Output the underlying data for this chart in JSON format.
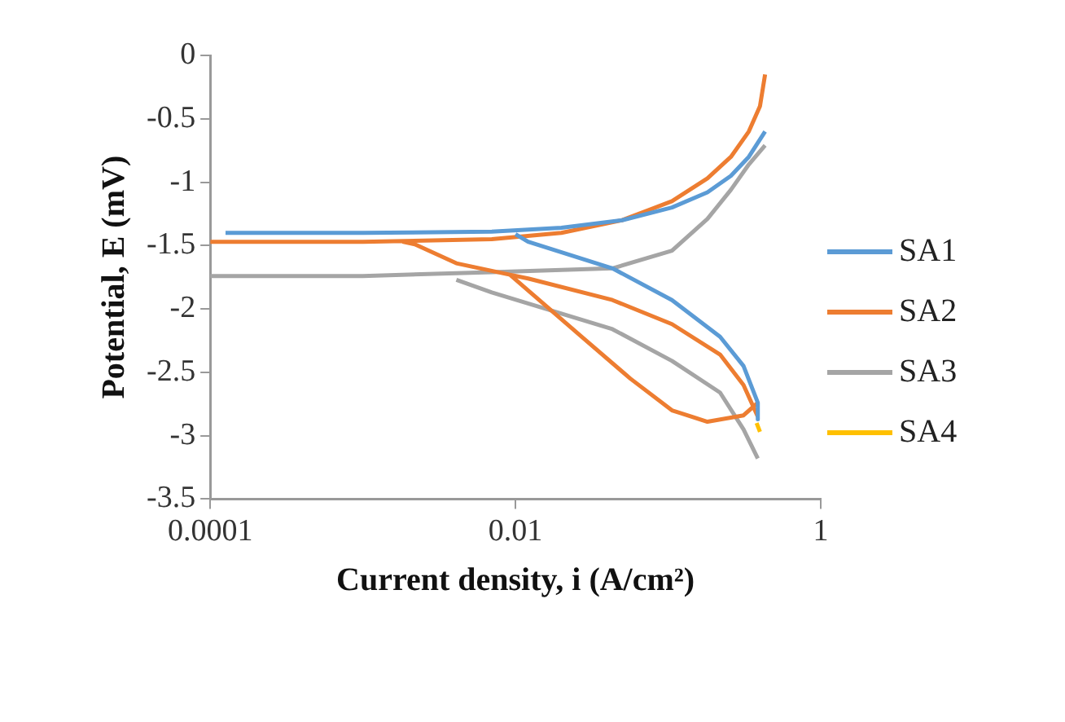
{
  "chart_data": {
    "type": "line",
    "xlabel": "Current density, i (A/cm²)",
    "ylabel": "Potential, E (mV)",
    "log": "x",
    "xlim": [
      0.0001,
      1
    ],
    "xticks": [
      0.0001,
      0.01,
      1
    ],
    "ylim": [
      -3.5,
      0
    ],
    "yticks": [
      -3.5,
      -3,
      -2.5,
      -2,
      -1.5,
      -1,
      -0.5,
      0
    ],
    "grid": false,
    "legend": "right",
    "marker": "none",
    "line_style": "solid",
    "series": [
      {
        "name": "SA1",
        "color": "#5b9bd5",
        "x": [
          0.432,
          0.338,
          0.258,
          0.181,
          0.106,
          0.05,
          0.02,
          0.007,
          0.001,
          0.000126,
          null,
          0.01,
          0.0121,
          0.0432,
          0.106,
          0.219,
          0.312,
          0.387,
          0.387
        ],
        "values": [
          -0.6,
          -0.8,
          -0.95,
          -1.08,
          -1.2,
          -1.3,
          -1.36,
          -1.39,
          -1.4,
          -1.4,
          null,
          -1.41,
          -1.47,
          -1.68,
          -1.93,
          -2.22,
          -2.45,
          -2.74,
          -2.87
        ]
      },
      {
        "name": "SA2",
        "color": "#ed7d31",
        "x": [
          0.432,
          0.4,
          0.338,
          0.258,
          0.181,
          0.106,
          0.05,
          0.02,
          0.007,
          0.001,
          0.0001,
          null,
          0.00182,
          0.00219,
          0.0041,
          0.0092,
          0.0121,
          0.0432,
          0.106,
          0.219,
          0.312,
          0.387,
          null,
          0.0092,
          0.0272,
          0.0566,
          0.106,
          0.181,
          0.312,
          0.387
        ],
        "values": [
          -0.15,
          -0.4,
          -0.6,
          -0.8,
          -0.97,
          -1.15,
          -1.3,
          -1.4,
          -1.45,
          -1.47,
          -1.47,
          null,
          -1.47,
          -1.49,
          -1.64,
          -1.73,
          -1.76,
          -1.93,
          -2.12,
          -2.36,
          -2.6,
          -2.85,
          null,
          -1.73,
          -2.22,
          -2.55,
          -2.8,
          -2.89,
          -2.84,
          -2.74
        ]
      },
      {
        "name": "SA3",
        "color": "#a5a5a5",
        "x": [
          0.432,
          0.338,
          0.258,
          0.181,
          0.106,
          0.0432,
          0.007,
          0.001,
          0.0001,
          null,
          0.0041,
          0.007,
          0.0432,
          0.106,
          0.219,
          0.312,
          0.387
        ],
        "values": [
          -0.71,
          -0.86,
          -1.06,
          -1.29,
          -1.54,
          -1.68,
          -1.71,
          -1.74,
          -1.74,
          null,
          -1.77,
          -1.87,
          -2.16,
          -2.41,
          -2.66,
          -2.95,
          -3.18
        ]
      },
      {
        "name": "SA4",
        "color": "#ffc000",
        "x": [
          0.38,
          0.4
        ],
        "values": [
          -2.9,
          -2.97
        ]
      }
    ]
  }
}
